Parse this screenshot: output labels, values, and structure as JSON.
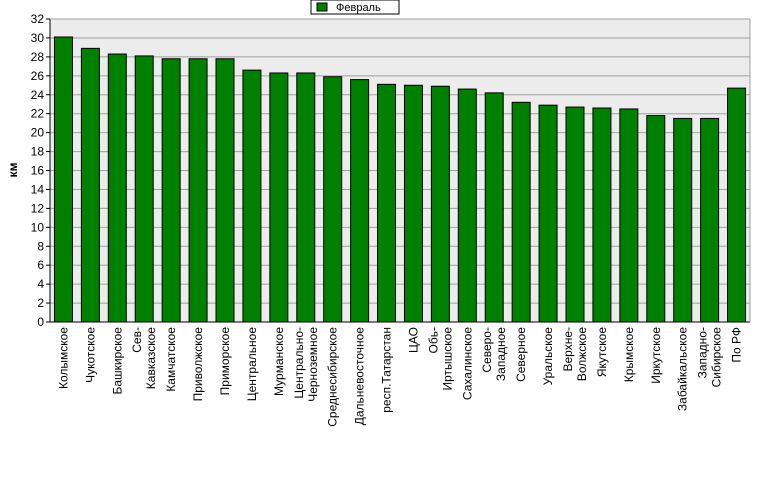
{
  "chart_data": {
    "type": "bar",
    "ylabel": "км",
    "xlabel": "",
    "ylim": [
      0,
      32
    ],
    "ytick_step": 2,
    "legend_position": "top-center",
    "grid": true,
    "bar_color": "#008000",
    "plot_background": "#ececec",
    "series": [
      {
        "name": "Февраль",
        "values": [
          30.1,
          28.9,
          28.3,
          28.1,
          27.8,
          27.8,
          27.8,
          26.6,
          26.3,
          26.3,
          25.9,
          25.6,
          25.1,
          25.0,
          24.9,
          24.6,
          24.2,
          23.2,
          22.9,
          22.7,
          22.6,
          22.5,
          21.8,
          21.5,
          21.5,
          24.7
        ]
      }
    ],
    "categories": [
      [
        "Колымское"
      ],
      [
        "Чукотское"
      ],
      [
        "Башкирское"
      ],
      [
        "Сев-",
        "Кавказское"
      ],
      [
        "Камчатское"
      ],
      [
        "Приволжское"
      ],
      [
        "Приморское"
      ],
      [
        "Центральное"
      ],
      [
        "Мурманское"
      ],
      [
        "Центрально-",
        "Черноземное"
      ],
      [
        "Среднесибирское"
      ],
      [
        "Дальневосточное"
      ],
      [
        "респ.Татарстан"
      ],
      [
        "ЦАО"
      ],
      [
        "Обь-",
        "Иртышское"
      ],
      [
        "Сахалинское"
      ],
      [
        "Северо-",
        "Западное"
      ],
      [
        "Северное"
      ],
      [
        "Уральское"
      ],
      [
        "Верхне-",
        "Волжское"
      ],
      [
        "Якутское"
      ],
      [
        "Крымское"
      ],
      [
        "Иркутское"
      ],
      [
        "Забайкальское"
      ],
      [
        "Западно-",
        "Сибирское"
      ],
      [
        "По РФ"
      ]
    ]
  }
}
